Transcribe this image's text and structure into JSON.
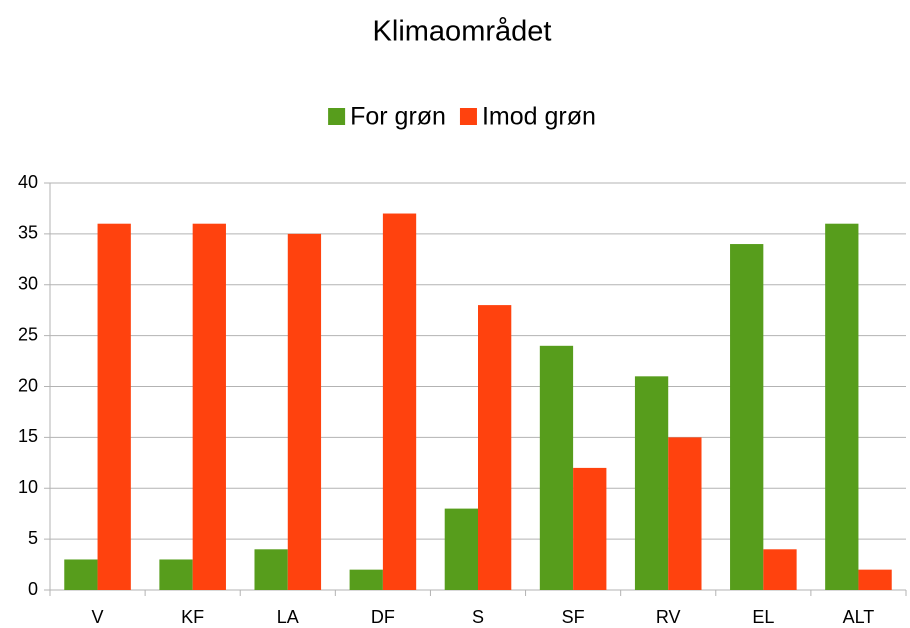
{
  "chart_data": {
    "type": "bar",
    "title": "Klimaområdet",
    "categories": [
      "V",
      "KF",
      "LA",
      "DF",
      "S",
      "SF",
      "RV",
      "EL",
      "ALT"
    ],
    "series": [
      {
        "name": "For grøn",
        "color": "#579d1c",
        "values": [
          3,
          3,
          4,
          2,
          8,
          24,
          21,
          34,
          36
        ]
      },
      {
        "name": "Imod grøn",
        "color": "#ff420e",
        "values": [
          36,
          36,
          35,
          37,
          28,
          12,
          15,
          4,
          2
        ]
      }
    ],
    "ylim": [
      0,
      40
    ],
    "yticks": [
      0,
      5,
      10,
      15,
      20,
      25,
      30,
      35,
      40
    ],
    "grid": true,
    "legend": "top"
  }
}
